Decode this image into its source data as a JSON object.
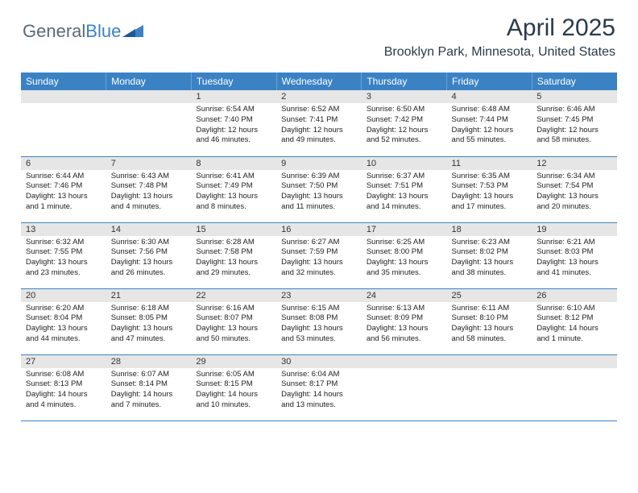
{
  "brand": {
    "part1": "General",
    "part2": "Blue",
    "text_color": "#5a6a78",
    "accent_color": "#3b82c4"
  },
  "title": "April 2025",
  "location": "Brooklyn Park, Minnesota, United States",
  "header_bg": "#3b82c4",
  "header_text_color": "#ffffff",
  "daynum_bg": "#e6e6e6",
  "row_border_color": "#3b82c4",
  "body_text_color": "#222222",
  "font_family": "Arial",
  "dayheaders": [
    "Sunday",
    "Monday",
    "Tuesday",
    "Wednesday",
    "Thursday",
    "Friday",
    "Saturday"
  ],
  "weeks": [
    {
      "days": [
        {
          "num": "",
          "sunrise": "",
          "sunset": "",
          "daylight": ""
        },
        {
          "num": "",
          "sunrise": "",
          "sunset": "",
          "daylight": ""
        },
        {
          "num": "1",
          "sunrise": "Sunrise: 6:54 AM",
          "sunset": "Sunset: 7:40 PM",
          "daylight": "Daylight: 12 hours and 46 minutes."
        },
        {
          "num": "2",
          "sunrise": "Sunrise: 6:52 AM",
          "sunset": "Sunset: 7:41 PM",
          "daylight": "Daylight: 12 hours and 49 minutes."
        },
        {
          "num": "3",
          "sunrise": "Sunrise: 6:50 AM",
          "sunset": "Sunset: 7:42 PM",
          "daylight": "Daylight: 12 hours and 52 minutes."
        },
        {
          "num": "4",
          "sunrise": "Sunrise: 6:48 AM",
          "sunset": "Sunset: 7:44 PM",
          "daylight": "Daylight: 12 hours and 55 minutes."
        },
        {
          "num": "5",
          "sunrise": "Sunrise: 6:46 AM",
          "sunset": "Sunset: 7:45 PM",
          "daylight": "Daylight: 12 hours and 58 minutes."
        }
      ]
    },
    {
      "days": [
        {
          "num": "6",
          "sunrise": "Sunrise: 6:44 AM",
          "sunset": "Sunset: 7:46 PM",
          "daylight": "Daylight: 13 hours and 1 minute."
        },
        {
          "num": "7",
          "sunrise": "Sunrise: 6:43 AM",
          "sunset": "Sunset: 7:48 PM",
          "daylight": "Daylight: 13 hours and 4 minutes."
        },
        {
          "num": "8",
          "sunrise": "Sunrise: 6:41 AM",
          "sunset": "Sunset: 7:49 PM",
          "daylight": "Daylight: 13 hours and 8 minutes."
        },
        {
          "num": "9",
          "sunrise": "Sunrise: 6:39 AM",
          "sunset": "Sunset: 7:50 PM",
          "daylight": "Daylight: 13 hours and 11 minutes."
        },
        {
          "num": "10",
          "sunrise": "Sunrise: 6:37 AM",
          "sunset": "Sunset: 7:51 PM",
          "daylight": "Daylight: 13 hours and 14 minutes."
        },
        {
          "num": "11",
          "sunrise": "Sunrise: 6:35 AM",
          "sunset": "Sunset: 7:53 PM",
          "daylight": "Daylight: 13 hours and 17 minutes."
        },
        {
          "num": "12",
          "sunrise": "Sunrise: 6:34 AM",
          "sunset": "Sunset: 7:54 PM",
          "daylight": "Daylight: 13 hours and 20 minutes."
        }
      ]
    },
    {
      "days": [
        {
          "num": "13",
          "sunrise": "Sunrise: 6:32 AM",
          "sunset": "Sunset: 7:55 PM",
          "daylight": "Daylight: 13 hours and 23 minutes."
        },
        {
          "num": "14",
          "sunrise": "Sunrise: 6:30 AM",
          "sunset": "Sunset: 7:56 PM",
          "daylight": "Daylight: 13 hours and 26 minutes."
        },
        {
          "num": "15",
          "sunrise": "Sunrise: 6:28 AM",
          "sunset": "Sunset: 7:58 PM",
          "daylight": "Daylight: 13 hours and 29 minutes."
        },
        {
          "num": "16",
          "sunrise": "Sunrise: 6:27 AM",
          "sunset": "Sunset: 7:59 PM",
          "daylight": "Daylight: 13 hours and 32 minutes."
        },
        {
          "num": "17",
          "sunrise": "Sunrise: 6:25 AM",
          "sunset": "Sunset: 8:00 PM",
          "daylight": "Daylight: 13 hours and 35 minutes."
        },
        {
          "num": "18",
          "sunrise": "Sunrise: 6:23 AM",
          "sunset": "Sunset: 8:02 PM",
          "daylight": "Daylight: 13 hours and 38 minutes."
        },
        {
          "num": "19",
          "sunrise": "Sunrise: 6:21 AM",
          "sunset": "Sunset: 8:03 PM",
          "daylight": "Daylight: 13 hours and 41 minutes."
        }
      ]
    },
    {
      "days": [
        {
          "num": "20",
          "sunrise": "Sunrise: 6:20 AM",
          "sunset": "Sunset: 8:04 PM",
          "daylight": "Daylight: 13 hours and 44 minutes."
        },
        {
          "num": "21",
          "sunrise": "Sunrise: 6:18 AM",
          "sunset": "Sunset: 8:05 PM",
          "daylight": "Daylight: 13 hours and 47 minutes."
        },
        {
          "num": "22",
          "sunrise": "Sunrise: 6:16 AM",
          "sunset": "Sunset: 8:07 PM",
          "daylight": "Daylight: 13 hours and 50 minutes."
        },
        {
          "num": "23",
          "sunrise": "Sunrise: 6:15 AM",
          "sunset": "Sunset: 8:08 PM",
          "daylight": "Daylight: 13 hours and 53 minutes."
        },
        {
          "num": "24",
          "sunrise": "Sunrise: 6:13 AM",
          "sunset": "Sunset: 8:09 PM",
          "daylight": "Daylight: 13 hours and 56 minutes."
        },
        {
          "num": "25",
          "sunrise": "Sunrise: 6:11 AM",
          "sunset": "Sunset: 8:10 PM",
          "daylight": "Daylight: 13 hours and 58 minutes."
        },
        {
          "num": "26",
          "sunrise": "Sunrise: 6:10 AM",
          "sunset": "Sunset: 8:12 PM",
          "daylight": "Daylight: 14 hours and 1 minute."
        }
      ]
    },
    {
      "days": [
        {
          "num": "27",
          "sunrise": "Sunrise: 6:08 AM",
          "sunset": "Sunset: 8:13 PM",
          "daylight": "Daylight: 14 hours and 4 minutes."
        },
        {
          "num": "28",
          "sunrise": "Sunrise: 6:07 AM",
          "sunset": "Sunset: 8:14 PM",
          "daylight": "Daylight: 14 hours and 7 minutes."
        },
        {
          "num": "29",
          "sunrise": "Sunrise: 6:05 AM",
          "sunset": "Sunset: 8:15 PM",
          "daylight": "Daylight: 14 hours and 10 minutes."
        },
        {
          "num": "30",
          "sunrise": "Sunrise: 6:04 AM",
          "sunset": "Sunset: 8:17 PM",
          "daylight": "Daylight: 14 hours and 13 minutes."
        },
        {
          "num": "",
          "sunrise": "",
          "sunset": "",
          "daylight": ""
        },
        {
          "num": "",
          "sunrise": "",
          "sunset": "",
          "daylight": ""
        },
        {
          "num": "",
          "sunrise": "",
          "sunset": "",
          "daylight": ""
        }
      ]
    }
  ]
}
